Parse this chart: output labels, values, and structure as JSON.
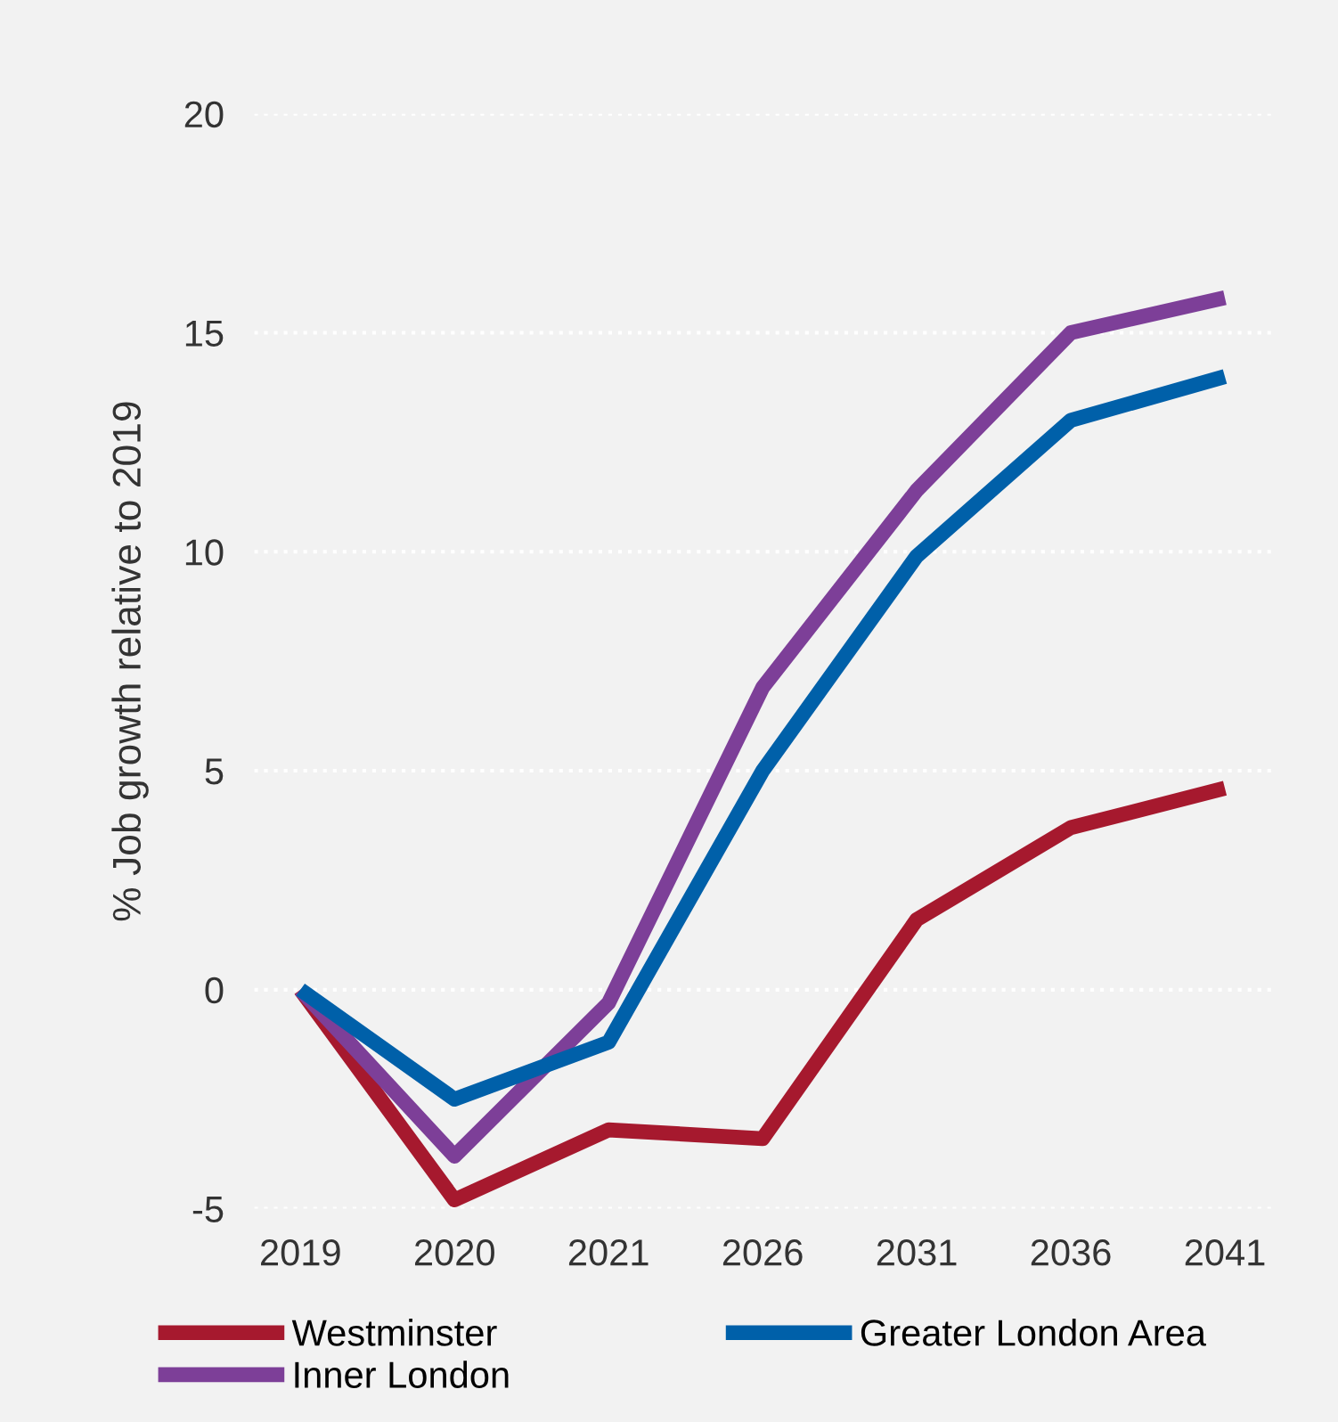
{
  "chart_data": {
    "type": "line",
    "ylabel": "% Job growth relative to 2019",
    "categories": [
      "2019",
      "2020",
      "2021",
      "2026",
      "2031",
      "2036",
      "2041"
    ],
    "series": [
      {
        "name": "Westminster",
        "color": "#a6192e",
        "values": [
          0,
          -4.8,
          -3.2,
          -3.4,
          1.6,
          3.7,
          4.6
        ]
      },
      {
        "name": "Inner London",
        "color": "#7d3f98",
        "values": [
          0,
          -3.8,
          -0.3,
          6.9,
          11.4,
          15.0,
          15.8
        ]
      },
      {
        "name": "Greater London Area",
        "color": "#0060a9",
        "values": [
          0,
          -2.5,
          -1.2,
          5.0,
          9.9,
          13.0,
          14.0
        ]
      }
    ],
    "ylim": [
      -5,
      20
    ],
    "yticks": [
      -5,
      0,
      5,
      10,
      15,
      20
    ],
    "grid": "y",
    "legend": "bottom",
    "marker": "none",
    "line_style": "solid"
  }
}
